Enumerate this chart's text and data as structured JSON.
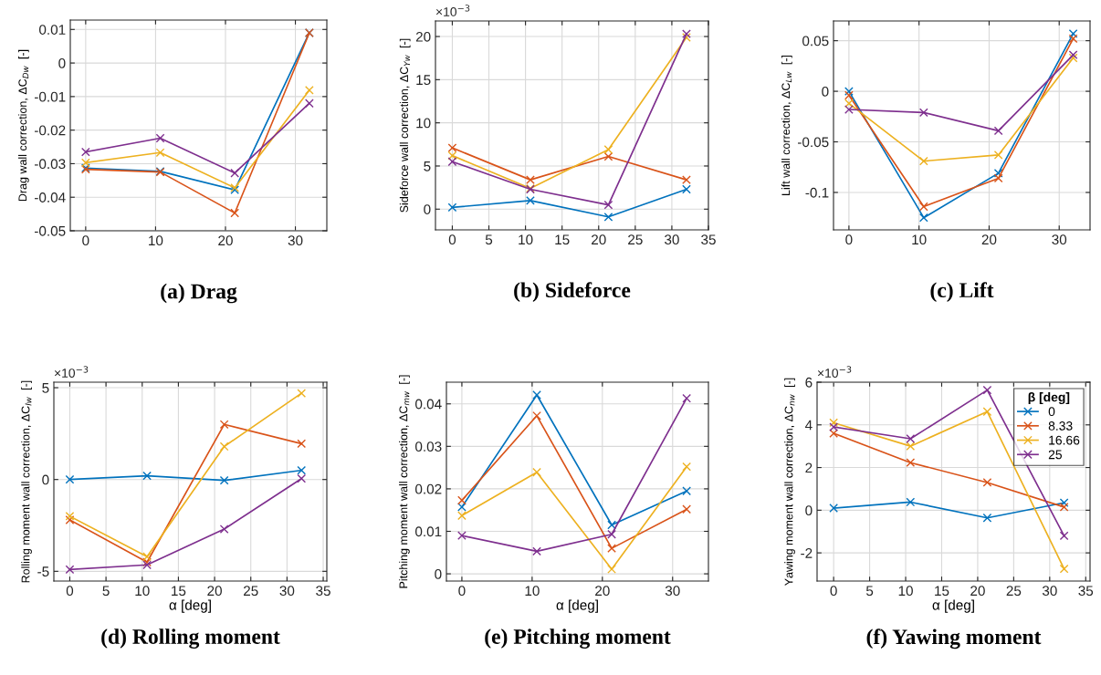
{
  "chart_data": [
    {
      "type": "line",
      "title": "(a) Drag",
      "ylabel": "Drag wall correction, ΔC$_{Dw}$  [-]",
      "x": [
        0,
        10.67,
        21.33,
        32
      ],
      "xlim": [
        -2.2,
        34.5
      ],
      "xticks": [
        0,
        10,
        20,
        30
      ],
      "ylim": [
        -0.05,
        0.0128
      ],
      "yticks": [
        {
          "value": -0.05,
          "label": "-0.05"
        },
        {
          "value": -0.04,
          "label": "-0.04"
        },
        {
          "value": -0.03,
          "label": "-0.03"
        },
        {
          "value": -0.02,
          "label": "-0.02"
        },
        {
          "value": -0.01,
          "label": "-0.01"
        },
        0,
        0.01
      ],
      "grid": true,
      "marker": "cross",
      "legend": false,
      "series": [
        {
          "color": "#0072bd",
          "values": [
            -0.0313,
            -0.0323,
            -0.0378,
            0.009
          ]
        },
        {
          "color": "#d95319",
          "values": [
            -0.0317,
            -0.0325,
            -0.0447,
            0.009
          ]
        },
        {
          "color": "#edb120",
          "values": [
            -0.0297,
            -0.0267,
            -0.0372,
            -0.0081
          ]
        },
        {
          "color": "#7e2f8e",
          "values": [
            -0.0265,
            -0.0224,
            -0.0328,
            -0.012
          ]
        }
      ]
    },
    {
      "type": "line",
      "title": "(b) Sideforce",
      "ylabel": "Sideforce wall correction, ΔC$_{Yw}$  [-]",
      "annotations": [
        "×10$^{−3}$"
      ],
      "x": [
        0,
        10.67,
        21.33,
        32
      ],
      "xlim": [
        -2.3,
        35
      ],
      "xticks": [
        0,
        5,
        10,
        15,
        20,
        25,
        30,
        35
      ],
      "ylim": [
        -2.4,
        21.8
      ],
      "yticks": [
        0,
        5,
        10,
        15,
        20
      ],
      "grid": true,
      "marker": "cross",
      "legend": false,
      "series": [
        {
          "color": "#0072bd",
          "values": [
            0.2,
            1.0,
            -0.9,
            2.3
          ]
        },
        {
          "color": "#d95319",
          "values": [
            7.1,
            3.4,
            6.1,
            3.4
          ]
        },
        {
          "color": "#edb120",
          "values": [
            6.2,
            2.4,
            6.9,
            19.9
          ]
        },
        {
          "color": "#7e2f8e",
          "values": [
            5.5,
            2.3,
            0.5,
            20.3
          ]
        }
      ]
    },
    {
      "type": "line",
      "title": "(c) Lift",
      "ylabel": "Lift wall correction, ΔC$_{Lw}$  [-]",
      "x": [
        0,
        10.67,
        21.33,
        32
      ],
      "xlim": [
        -2.2,
        34.4
      ],
      "xticks": [
        0,
        10,
        20,
        30
      ],
      "ylim": [
        -0.137,
        0.0695
      ],
      "yticks": [
        {
          "value": -0.1,
          "label": "-0.1"
        },
        {
          "value": -0.05,
          "label": "-0.05"
        },
        0,
        0.05
      ],
      "grid": true,
      "marker": "cross",
      "legend": false,
      "series": [
        {
          "color": "#0072bd",
          "values": [
            0.0,
            -0.125,
            -0.081,
            0.057
          ]
        },
        {
          "color": "#d95319",
          "values": [
            -0.004,
            -0.114,
            -0.086,
            0.052
          ]
        },
        {
          "color": "#edb120",
          "values": [
            -0.012,
            -0.069,
            -0.063,
            0.033
          ]
        },
        {
          "color": "#7e2f8e",
          "values": [
            -0.018,
            -0.021,
            -0.039,
            0.036
          ]
        }
      ]
    },
    {
      "type": "line",
      "title": "(d) Rolling moment",
      "xlabel": "α [deg]",
      "ylabel": "Rolling moment wall correction, ΔC$_{lw}$  [-]",
      "annotations": [
        "×10$^{−3}$"
      ],
      "x": [
        0,
        10.67,
        21.33,
        32
      ],
      "xlim": [
        -2.2,
        35.5
      ],
      "xticks": [
        0,
        5,
        10,
        15,
        20,
        25,
        30,
        35
      ],
      "ylim": [
        -5.53,
        5.3
      ],
      "yticks": [
        {
          "value": -5,
          "label": "-5"
        },
        0,
        5
      ],
      "grid": true,
      "marker": "cross",
      "legend": false,
      "series": [
        {
          "color": "#0072bd",
          "values": [
            0.0,
            0.2,
            -0.05,
            0.5
          ]
        },
        {
          "color": "#d95319",
          "values": [
            -2.2,
            -4.5,
            3.0,
            1.95
          ]
        },
        {
          "color": "#edb120",
          "values": [
            -2.0,
            -4.2,
            1.8,
            4.7
          ]
        },
        {
          "color": "#7e2f8e",
          "values": [
            -4.9,
            -4.65,
            -2.7,
            0.05
          ]
        }
      ]
    },
    {
      "type": "line",
      "title": "(e) Pitching moment",
      "xlabel": "α [deg]",
      "ylabel": "Pitching moment wall correction, ΔC$_{mw}$  [-]",
      "x": [
        0,
        10.67,
        21.33,
        32
      ],
      "xlim": [
        -2.2,
        35.1
      ],
      "xticks": [
        0,
        10,
        20,
        30
      ],
      "ylim": [
        -0.0017,
        0.0451
      ],
      "yticks": [
        0,
        0.01,
        0.02,
        0.03,
        0.04
      ],
      "grid": true,
      "marker": "cross",
      "legend": false,
      "series": [
        {
          "color": "#0072bd",
          "values": [
            0.0157,
            0.0421,
            0.0115,
            0.0195
          ]
        },
        {
          "color": "#d95319",
          "values": [
            0.0173,
            0.0372,
            0.006,
            0.0152
          ]
        },
        {
          "color": "#edb120",
          "values": [
            0.0137,
            0.0239,
            0.0011,
            0.0252
          ]
        },
        {
          "color": "#7e2f8e",
          "values": [
            0.009,
            0.0053,
            0.0093,
            0.0413
          ]
        }
      ]
    },
    {
      "type": "line",
      "title": "(f) Yawing moment",
      "xlabel": "α [deg]",
      "ylabel": "Yawing moment wall correction, ΔC$_{nw}$  [-]",
      "annotations": [
        "×10$^{−3}$"
      ],
      "x": [
        0,
        10.67,
        21.33,
        32
      ],
      "xlim": [
        -2.3,
        35.6
      ],
      "xticks": [
        0,
        5,
        10,
        15,
        20,
        25,
        30,
        35
      ],
      "ylim": [
        -3.32,
        6
      ],
      "yticks": [
        {
          "value": -2,
          "label": "-2"
        },
        0,
        2,
        4,
        6
      ],
      "grid": true,
      "marker": "cross",
      "legend": "top right",
      "legend_title": "β [deg]",
      "series": [
        {
          "name": "0",
          "color": "#0072bd",
          "values": [
            0.1,
            0.38,
            -0.36,
            0.35
          ]
        },
        {
          "name": "8.33",
          "color": "#d95319",
          "values": [
            3.6,
            2.23,
            1.3,
            0.15
          ]
        },
        {
          "name": "16.66",
          "color": "#edb120",
          "values": [
            4.1,
            3.0,
            4.62,
            -2.75
          ]
        },
        {
          "name": "25",
          "color": "#7e2f8e",
          "values": [
            3.9,
            3.35,
            5.63,
            -1.2
          ]
        }
      ]
    }
  ]
}
